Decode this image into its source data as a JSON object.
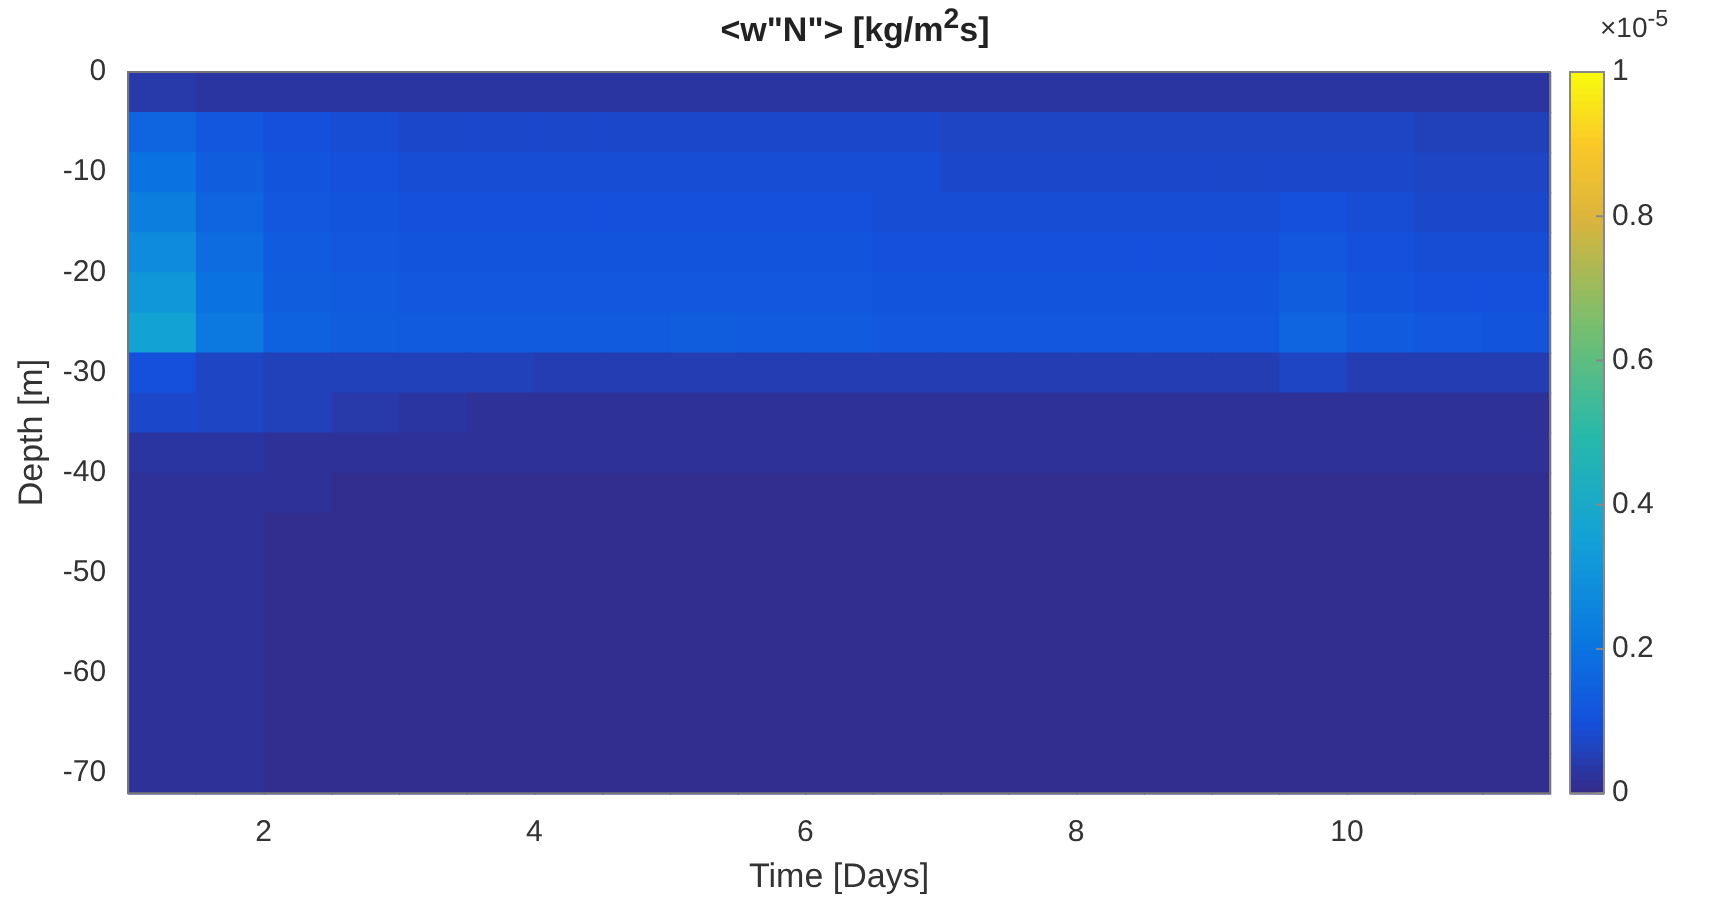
{
  "chart_data": {
    "type": "heatmap",
    "title": "<w\"N\"> [kg/m$^{2}$s]",
    "xlabel": "Time [Days]",
    "ylabel": "Depth [m]",
    "annotations": [
      "×10$^{-5}$"
    ],
    "x": [
      1.25,
      1.75,
      2.25,
      2.75,
      3.25,
      3.75,
      4.25,
      4.75,
      5.25,
      5.75,
      6.25,
      6.75,
      7.25,
      7.75,
      8.25,
      8.75,
      9.25,
      9.75,
      10.25,
      10.75,
      11.25
    ],
    "y": [
      -2,
      -6,
      -10,
      -14,
      -18,
      -22,
      -26,
      -30,
      -34,
      -38,
      -42,
      -46,
      -50,
      -54,
      -58,
      -62,
      -66,
      -70
    ],
    "xlim": [
      1,
      11.5
    ],
    "xticks": [
      2,
      4,
      6,
      8,
      10
    ],
    "ylim": [
      -72,
      0
    ],
    "yticks": [
      -70,
      -60,
      -50,
      -40,
      -30,
      -20,
      -10,
      0
    ],
    "clim": [
      0,
      1
    ],
    "cticks": [
      0,
      0.2,
      0.4,
      0.6,
      0.8,
      1
    ],
    "cells": [
      [
        0.04,
        0.03,
        0.03,
        0.03,
        0.03,
        0.03,
        0.03,
        0.03,
        0.03,
        0.03,
        0.03,
        0.03,
        0.03,
        0.03,
        0.03,
        0.03,
        0.03,
        0.03,
        0.03,
        0.03,
        0.03
      ],
      [
        0.16,
        0.12,
        0.1,
        0.09,
        0.08,
        0.08,
        0.08,
        0.08,
        0.08,
        0.08,
        0.08,
        0.08,
        0.07,
        0.07,
        0.07,
        0.07,
        0.07,
        0.07,
        0.07,
        0.06,
        0.06
      ],
      [
        0.2,
        0.14,
        0.11,
        0.1,
        0.09,
        0.09,
        0.09,
        0.09,
        0.09,
        0.09,
        0.09,
        0.09,
        0.08,
        0.08,
        0.08,
        0.08,
        0.08,
        0.08,
        0.08,
        0.07,
        0.07
      ],
      [
        0.24,
        0.16,
        0.12,
        0.11,
        0.1,
        0.1,
        0.1,
        0.1,
        0.1,
        0.1,
        0.1,
        0.09,
        0.09,
        0.09,
        0.09,
        0.09,
        0.09,
        0.1,
        0.09,
        0.08,
        0.08
      ],
      [
        0.28,
        0.18,
        0.13,
        0.12,
        0.11,
        0.11,
        0.11,
        0.11,
        0.11,
        0.11,
        0.11,
        0.1,
        0.1,
        0.1,
        0.1,
        0.1,
        0.1,
        0.12,
        0.1,
        0.09,
        0.09
      ],
      [
        0.32,
        0.2,
        0.14,
        0.13,
        0.12,
        0.12,
        0.12,
        0.12,
        0.12,
        0.12,
        0.12,
        0.11,
        0.11,
        0.11,
        0.11,
        0.11,
        0.11,
        0.14,
        0.11,
        0.1,
        0.1
      ],
      [
        0.36,
        0.22,
        0.15,
        0.14,
        0.13,
        0.13,
        0.13,
        0.13,
        0.14,
        0.13,
        0.13,
        0.12,
        0.12,
        0.12,
        0.12,
        0.12,
        0.12,
        0.16,
        0.13,
        0.12,
        0.11
      ],
      [
        0.1,
        0.07,
        0.06,
        0.06,
        0.06,
        0.06,
        0.05,
        0.05,
        0.05,
        0.05,
        0.05,
        0.05,
        0.05,
        0.05,
        0.05,
        0.05,
        0.05,
        0.07,
        0.05,
        0.05,
        0.05
      ],
      [
        0.08,
        0.07,
        0.06,
        0.04,
        0.03,
        0.02,
        0.02,
        0.02,
        0.02,
        0.02,
        0.02,
        0.02,
        0.02,
        0.02,
        0.02,
        0.02,
        0.02,
        0.02,
        0.02,
        0.02,
        0.02
      ],
      [
        0.03,
        0.03,
        0.02,
        0.02,
        0.02,
        0.02,
        0.02,
        0.02,
        0.02,
        0.02,
        0.02,
        0.02,
        0.02,
        0.02,
        0.02,
        0.02,
        0.02,
        0.02,
        0.02,
        0.02,
        0.02
      ],
      [
        0.02,
        0.02,
        0.02,
        0.01,
        0.01,
        0.01,
        0.01,
        0.01,
        0.01,
        0.01,
        0.01,
        0.01,
        0.01,
        0.01,
        0.01,
        0.01,
        0.01,
        0.01,
        0.01,
        0.01,
        0.01
      ],
      [
        0.02,
        0.02,
        0.01,
        0.01,
        0.01,
        0.01,
        0.01,
        0.01,
        0.01,
        0.01,
        0.01,
        0.01,
        0.01,
        0.01,
        0.01,
        0.01,
        0.01,
        0.01,
        0.01,
        0.01,
        0.01
      ],
      [
        0.02,
        0.02,
        0.01,
        0.01,
        0.01,
        0.01,
        0.01,
        0.01,
        0.01,
        0.01,
        0.01,
        0.01,
        0.01,
        0.01,
        0.01,
        0.01,
        0.01,
        0.01,
        0.01,
        0.01,
        0.01
      ],
      [
        0.02,
        0.02,
        0.01,
        0.01,
        0.01,
        0.01,
        0.01,
        0.01,
        0.01,
        0.01,
        0.01,
        0.01,
        0.01,
        0.01,
        0.01,
        0.01,
        0.01,
        0.01,
        0.01,
        0.01,
        0.01
      ],
      [
        0.02,
        0.02,
        0.01,
        0.01,
        0.01,
        0.01,
        0.01,
        0.01,
        0.01,
        0.01,
        0.01,
        0.01,
        0.01,
        0.01,
        0.01,
        0.01,
        0.01,
        0.01,
        0.01,
        0.01,
        0.01
      ],
      [
        0.02,
        0.02,
        0.01,
        0.01,
        0.01,
        0.01,
        0.01,
        0.01,
        0.01,
        0.01,
        0.01,
        0.01,
        0.01,
        0.01,
        0.01,
        0.01,
        0.01,
        0.01,
        0.01,
        0.01,
        0.01
      ],
      [
        0.02,
        0.02,
        0.01,
        0.01,
        0.01,
        0.01,
        0.01,
        0.01,
        0.01,
        0.01,
        0.01,
        0.01,
        0.01,
        0.01,
        0.01,
        0.01,
        0.01,
        0.01,
        0.01,
        0.01,
        0.01
      ],
      [
        0.02,
        0.02,
        0.01,
        0.01,
        0.01,
        0.01,
        0.01,
        0.01,
        0.01,
        0.01,
        0.01,
        0.01,
        0.01,
        0.01,
        0.01,
        0.01,
        0.01,
        0.01,
        0.01,
        0.01,
        0.01
      ]
    ]
  }
}
